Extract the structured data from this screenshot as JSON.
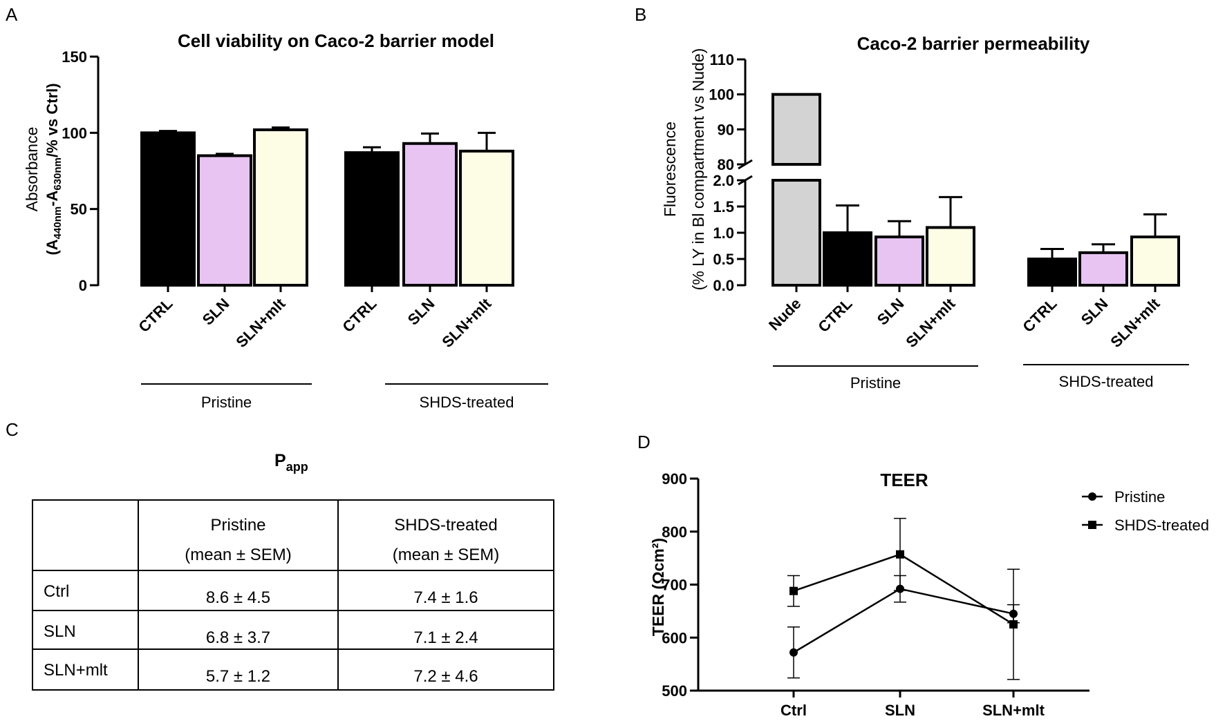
{
  "panels": {
    "a": "A",
    "b": "B",
    "c": "C",
    "d": "D"
  },
  "chart_data": [
    {
      "id": "A",
      "type": "bar",
      "title": "Cell viability on Caco-2 barrier model",
      "ylabel_line1": "Absorbance",
      "ylabel_line2": "(A440nm-A630nm/% vs Ctrl)",
      "ylim": [
        0,
        150
      ],
      "yticks": [
        0,
        50,
        100,
        150
      ],
      "categories": [
        "CTRL",
        "SLN",
        "SLN+mlt",
        "CTRL",
        "SLN",
        "SLN+mlt"
      ],
      "values": [
        100,
        85,
        102,
        87,
        93,
        88
      ],
      "errors": [
        1.2,
        1.2,
        1.5,
        3.5,
        6.5,
        12
      ],
      "colors": [
        "#000000",
        "#e8c4f3",
        "#fdfde6",
        "#000000",
        "#e8c4f3",
        "#fdfde6"
      ],
      "groups": [
        {
          "label": "Pristine",
          "from": 0,
          "to": 2
        },
        {
          "label": "SHDS-treated",
          "from": 3,
          "to": 5
        }
      ]
    },
    {
      "id": "B",
      "type": "bar",
      "title": "Caco-2 barrier permeability",
      "ylabel_line1": "Fluorescence",
      "ylabel_line2": "(% LY in Bl compartment vs Nude)",
      "y_lower_range": [
        0,
        2.0
      ],
      "y_lower_ticks": [
        "0.0",
        "0.5",
        "1.0",
        "1.5",
        "2.0"
      ],
      "y_upper_range": [
        80,
        110
      ],
      "y_upper_ticks": [
        "80",
        "90",
        "100",
        "110"
      ],
      "categories": [
        "Nude",
        "CTRL",
        "SLN",
        "SLN+mlt",
        "CTRL",
        "SLN",
        "SLN+mlt"
      ],
      "values": [
        100,
        1.0,
        0.92,
        1.1,
        0.5,
        0.62,
        0.92
      ],
      "errors": [
        0,
        0.52,
        0.3,
        0.58,
        0.19,
        0.16,
        0.43
      ],
      "colors": [
        "#d3d3d3",
        "#000000",
        "#e8c4f3",
        "#fdfde6",
        "#000000",
        "#e8c4f3",
        "#fdfde6"
      ],
      "groups": [
        {
          "label": "Pristine",
          "from": 0,
          "to": 3
        },
        {
          "label": "SHDS-treated",
          "from": 4,
          "to": 6
        }
      ]
    },
    {
      "id": "C",
      "type": "table",
      "title": "P",
      "title_sub": "app",
      "header": [
        "",
        "Pristine",
        "SHDS-treated"
      ],
      "header_sub": [
        "",
        "(mean ± SEM)",
        "(mean ± SEM)"
      ],
      "rows": [
        [
          "Ctrl",
          "8.6 ± 4.5",
          "7.4 ± 1.6"
        ],
        [
          "SLN",
          "6.8 ± 3.7",
          "7.1 ± 2.4"
        ],
        [
          "SLN+mlt",
          "5.7 ± 1.2",
          "7.2 ± 4.6"
        ]
      ]
    },
    {
      "id": "D",
      "type": "line",
      "title": "TEER",
      "ylabel": "TEER (Ωcm²)",
      "ylim": [
        500,
        900
      ],
      "yticks": [
        500,
        600,
        700,
        800,
        900
      ],
      "categories": [
        "Ctrl",
        "SLN",
        "SLN+mlt"
      ],
      "series": [
        {
          "name": "Pristine",
          "marker": "circle",
          "values": [
            572,
            692,
            645
          ],
          "errors": [
            48,
            25,
            17
          ]
        },
        {
          "name": "SHDS-treated",
          "marker": "square",
          "values": [
            688,
            757,
            625
          ],
          "errors": [
            29,
            68,
            104
          ]
        }
      ]
    }
  ]
}
